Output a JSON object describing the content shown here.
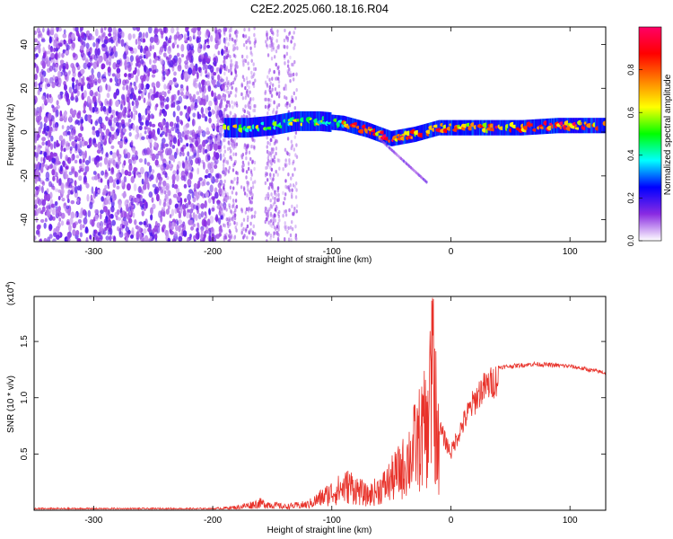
{
  "figure": {
    "title": "C2E2.2025.060.18.16.R04"
  },
  "chart_data": [
    {
      "type": "heatmap",
      "xlabel": "Height of straight line (km)",
      "ylabel": "Frequency (Hz)",
      "xlim": [
        -350,
        130
      ],
      "ylim": [
        -50,
        48
      ],
      "x_ticks": [
        -300,
        -200,
        -100,
        0,
        100
      ],
      "y_ticks": [
        -40,
        -20,
        0,
        20,
        40
      ],
      "grid": false,
      "noise_region_x": [
        -350,
        -190
      ],
      "signal_track": [
        {
          "x": -190,
          "y": 2
        },
        {
          "x": -170,
          "y": 2
        },
        {
          "x": -150,
          "y": 3
        },
        {
          "x": -130,
          "y": 5
        },
        {
          "x": -110,
          "y": 5
        },
        {
          "x": -90,
          "y": 4
        },
        {
          "x": -70,
          "y": 1
        },
        {
          "x": -50,
          "y": -3
        },
        {
          "x": -30,
          "y": -1
        },
        {
          "x": -10,
          "y": 2
        },
        {
          "x": 0,
          "y": 2
        },
        {
          "x": 30,
          "y": 2
        },
        {
          "x": 60,
          "y": 2
        },
        {
          "x": 90,
          "y": 3
        },
        {
          "x": 130,
          "y": 3
        }
      ],
      "colorbar": {
        "label": "Normalized spectral amplitude",
        "range": [
          0,
          1
        ],
        "ticks": [
          "0.0",
          "0.2",
          "0.4",
          "0.6",
          "0.8"
        ],
        "colors": [
          "#ffffff",
          "#8a2be2",
          "#0000ff",
          "#00ffff",
          "#00ff00",
          "#ffff00",
          "#ff8000",
          "#ff0000",
          "#ff0066"
        ]
      }
    },
    {
      "type": "line",
      "xlabel": "Height of straight line (km)",
      "ylabel": "SNR (10 * v/v)",
      "scale_label": "(x10",
      "scale_exp": "4",
      "xlim": [
        -350,
        130
      ],
      "ylim": [
        0,
        1.9
      ],
      "x_ticks": [
        -300,
        -200,
        -100,
        0,
        100
      ],
      "y_ticks": [
        "0.5",
        "1.0",
        "1.5"
      ],
      "grid": false,
      "series": [
        {
          "color": "#e8322a",
          "envelope": [
            {
              "x": -350,
              "y": 0.02
            },
            {
              "x": -200,
              "y": 0.02
            },
            {
              "x": -180,
              "y": 0.04
            },
            {
              "x": -160,
              "y": 0.1
            },
            {
              "x": -140,
              "y": 0.05
            },
            {
              "x": -120,
              "y": 0.08
            },
            {
              "x": -100,
              "y": 0.25
            },
            {
              "x": -85,
              "y": 0.35
            },
            {
              "x": -70,
              "y": 0.2
            },
            {
              "x": -55,
              "y": 0.35
            },
            {
              "x": -40,
              "y": 0.6
            },
            {
              "x": -30,
              "y": 0.9
            },
            {
              "x": -20,
              "y": 1.2
            },
            {
              "x": -15,
              "y": 1.85
            },
            {
              "x": -10,
              "y": 0.8
            },
            {
              "x": 0,
              "y": 0.55
            },
            {
              "x": 5,
              "y": 0.7
            },
            {
              "x": 15,
              "y": 0.95
            },
            {
              "x": 25,
              "y": 1.15
            },
            {
              "x": 40,
              "y": 1.27
            },
            {
              "x": 70,
              "y": 1.3
            },
            {
              "x": 100,
              "y": 1.28
            },
            {
              "x": 130,
              "y": 1.22
            }
          ]
        }
      ]
    }
  ]
}
